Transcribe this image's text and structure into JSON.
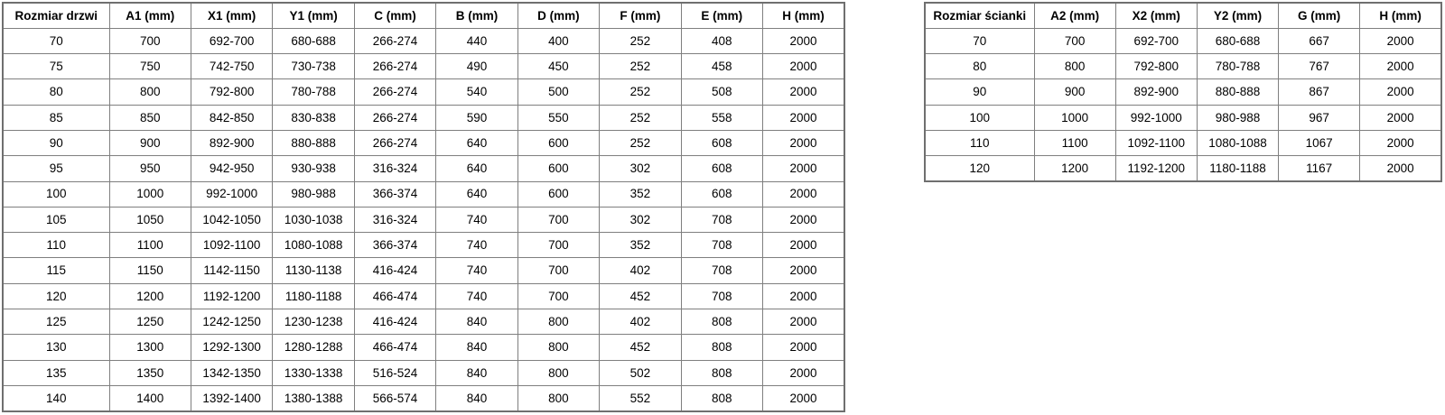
{
  "left_table": {
    "name": "door-size-table",
    "headers": [
      "Rozmiar drzwi",
      "A1 (mm)",
      "X1 (mm)",
      "Y1 (mm)",
      "C (mm)",
      "B (mm)",
      "D (mm)",
      "F (mm)",
      "E (mm)",
      "H (mm)"
    ],
    "rows": [
      [
        "70",
        "700",
        "692-700",
        "680-688",
        "266-274",
        "440",
        "400",
        "252",
        "408",
        "2000"
      ],
      [
        "75",
        "750",
        "742-750",
        "730-738",
        "266-274",
        "490",
        "450",
        "252",
        "458",
        "2000"
      ],
      [
        "80",
        "800",
        "792-800",
        "780-788",
        "266-274",
        "540",
        "500",
        "252",
        "508",
        "2000"
      ],
      [
        "85",
        "850",
        "842-850",
        "830-838",
        "266-274",
        "590",
        "550",
        "252",
        "558",
        "2000"
      ],
      [
        "90",
        "900",
        "892-900",
        "880-888",
        "266-274",
        "640",
        "600",
        "252",
        "608",
        "2000"
      ],
      [
        "95",
        "950",
        "942-950",
        "930-938",
        "316-324",
        "640",
        "600",
        "302",
        "608",
        "2000"
      ],
      [
        "100",
        "1000",
        "992-1000",
        "980-988",
        "366-374",
        "640",
        "600",
        "352",
        "608",
        "2000"
      ],
      [
        "105",
        "1050",
        "1042-1050",
        "1030-1038",
        "316-324",
        "740",
        "700",
        "302",
        "708",
        "2000"
      ],
      [
        "110",
        "1100",
        "1092-1100",
        "1080-1088",
        "366-374",
        "740",
        "700",
        "352",
        "708",
        "2000"
      ],
      [
        "115",
        "1150",
        "1142-1150",
        "1130-1138",
        "416-424",
        "740",
        "700",
        "402",
        "708",
        "2000"
      ],
      [
        "120",
        "1200",
        "1192-1200",
        "1180-1188",
        "466-474",
        "740",
        "700",
        "452",
        "708",
        "2000"
      ],
      [
        "125",
        "1250",
        "1242-1250",
        "1230-1238",
        "416-424",
        "840",
        "800",
        "402",
        "808",
        "2000"
      ],
      [
        "130",
        "1300",
        "1292-1300",
        "1280-1288",
        "466-474",
        "840",
        "800",
        "452",
        "808",
        "2000"
      ],
      [
        "135",
        "1350",
        "1342-1350",
        "1330-1338",
        "516-524",
        "840",
        "800",
        "502",
        "808",
        "2000"
      ],
      [
        "140",
        "1400",
        "1392-1400",
        "1380-1388",
        "566-574",
        "840",
        "800",
        "552",
        "808",
        "2000"
      ]
    ]
  },
  "right_table": {
    "name": "wall-panel-size-table",
    "headers": [
      "Rozmiar ścianki",
      "A2 (mm)",
      "X2 (mm)",
      "Y2 (mm)",
      "G (mm)",
      "H (mm)"
    ],
    "rows": [
      [
        "70",
        "700",
        "692-700",
        "680-688",
        "667",
        "2000"
      ],
      [
        "80",
        "800",
        "792-800",
        "780-788",
        "767",
        "2000"
      ],
      [
        "90",
        "900",
        "892-900",
        "880-888",
        "867",
        "2000"
      ],
      [
        "100",
        "1000",
        "992-1000",
        "980-988",
        "967",
        "2000"
      ],
      [
        "110",
        "1100",
        "1092-1100",
        "1080-1088",
        "1067",
        "2000"
      ],
      [
        "120",
        "1200",
        "1192-1200",
        "1180-1188",
        "1167",
        "2000"
      ]
    ]
  },
  "colors": {
    "background": "#ffffff",
    "border_inner": "#7f7f7f",
    "border_outer": "#6f6f6f",
    "text": "#000000"
  }
}
